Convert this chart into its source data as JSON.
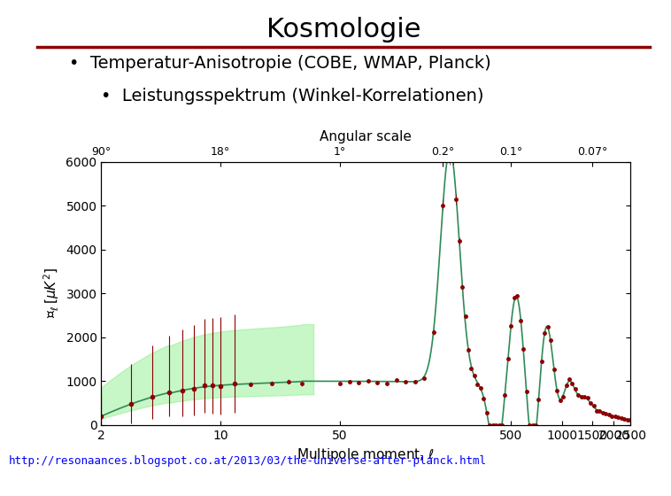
{
  "title": "Kosmologie",
  "bullet1": "Temperatur-Anisotropie (COBE, WMAP, Planck)",
  "bullet2": "Leistungsspektrum (Winkel-Korrelationen)",
  "url": "http://resonaances.blogspot.co.at/2013/03/the-universe-after-planck.html",
  "title_fontsize": 22,
  "bullet_fontsize": 14,
  "url_fontsize": 9,
  "separator_color": "#8B0000",
  "background": "#ffffff",
  "plot_bg": "#ffffff",
  "curve_color": "#2e8b57",
  "dot_color": "#8B0000",
  "fill_color": "#90EE90",
  "xlabel": "Multipole moment, $\\ell$",
  "ylabel": "$\\mathcal{D}_\\ell\\,[\\mu K^2]$",
  "top_xlabel": "Angular scale",
  "ylim": [
    0,
    6000
  ],
  "top_tick_positions": [
    2,
    10,
    50,
    200,
    500,
    1500
  ],
  "top_tick_labels": [
    "90°",
    "18°",
    "1°",
    "0.2°",
    "0.1°",
    "0.07°"
  ],
  "bottom_ticks": [
    2,
    10,
    50,
    500,
    1000,
    1500,
    2000,
    2500
  ]
}
